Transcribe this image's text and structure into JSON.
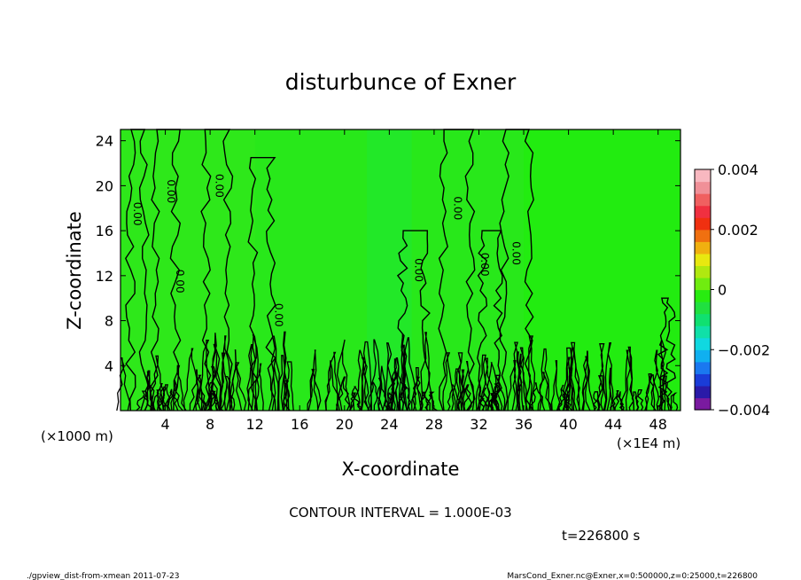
{
  "chart_data": {
    "type": "heatmap",
    "title": "disturbunce of Exner",
    "xlabel": "X-coordinate",
    "ylabel": "Z-coordinate",
    "x_unit_left": "(×1000 m)",
    "x_unit_right": "(×1E4 m)",
    "xlim": [
      0,
      50
    ],
    "ylim": [
      0,
      25
    ],
    "x_ticks": [
      4,
      8,
      12,
      16,
      20,
      24,
      28,
      32,
      36,
      40,
      44,
      48
    ],
    "y_ticks": [
      4,
      8,
      12,
      16,
      20,
      24
    ],
    "contour_interval_text": "CONTOUR INTERVAL = 1.000E-03",
    "time_text": "t=226800 s",
    "colorbar": {
      "range": [
        -0.004,
        0.004
      ],
      "tick_labels": [
        "0.004",
        "0.002",
        "0",
        "−0.002",
        "−0.004"
      ],
      "tick_values": [
        0.004,
        0.002,
        0,
        -0.002,
        -0.004
      ],
      "colors": [
        "#7a1aa0",
        "#2a1aa8",
        "#1a3cd8",
        "#1a78f0",
        "#10b0f0",
        "#10d8e0",
        "#10e0a8",
        "#10e070",
        "#20e040",
        "#28ec10",
        "#70ec10",
        "#b0e810",
        "#e8e810",
        "#f0b010",
        "#f07010",
        "#f03010",
        "#f03040",
        "#f06060",
        "#f09098",
        "#f8b8c0"
      ]
    },
    "contour_labels": [
      {
        "x": 1.2,
        "z": 17.5,
        "text": "0.00"
      },
      {
        "x": 4.2,
        "z": 19.5,
        "text": "0.00"
      },
      {
        "x": 8.5,
        "z": 20.0,
        "text": "0.00"
      },
      {
        "x": 5.0,
        "z": 11.5,
        "text": "0.00"
      },
      {
        "x": 13.8,
        "z": 8.5,
        "text": "0.00"
      },
      {
        "x": 29.8,
        "z": 18.0,
        "text": "0.00"
      },
      {
        "x": 26.3,
        "z": 12.5,
        "text": "0.00"
      },
      {
        "x": 35.0,
        "z": 14.0,
        "text": "0.00"
      },
      {
        "x": 32.2,
        "z": 13.0,
        "text": "0.00"
      }
    ]
  },
  "footer": {
    "left": "./gpview_dist-from-xmean  2011-07-23",
    "right": "MarsCond_Exner.nc@Exner,x=0:500000,z=0:25000,t=226800"
  }
}
